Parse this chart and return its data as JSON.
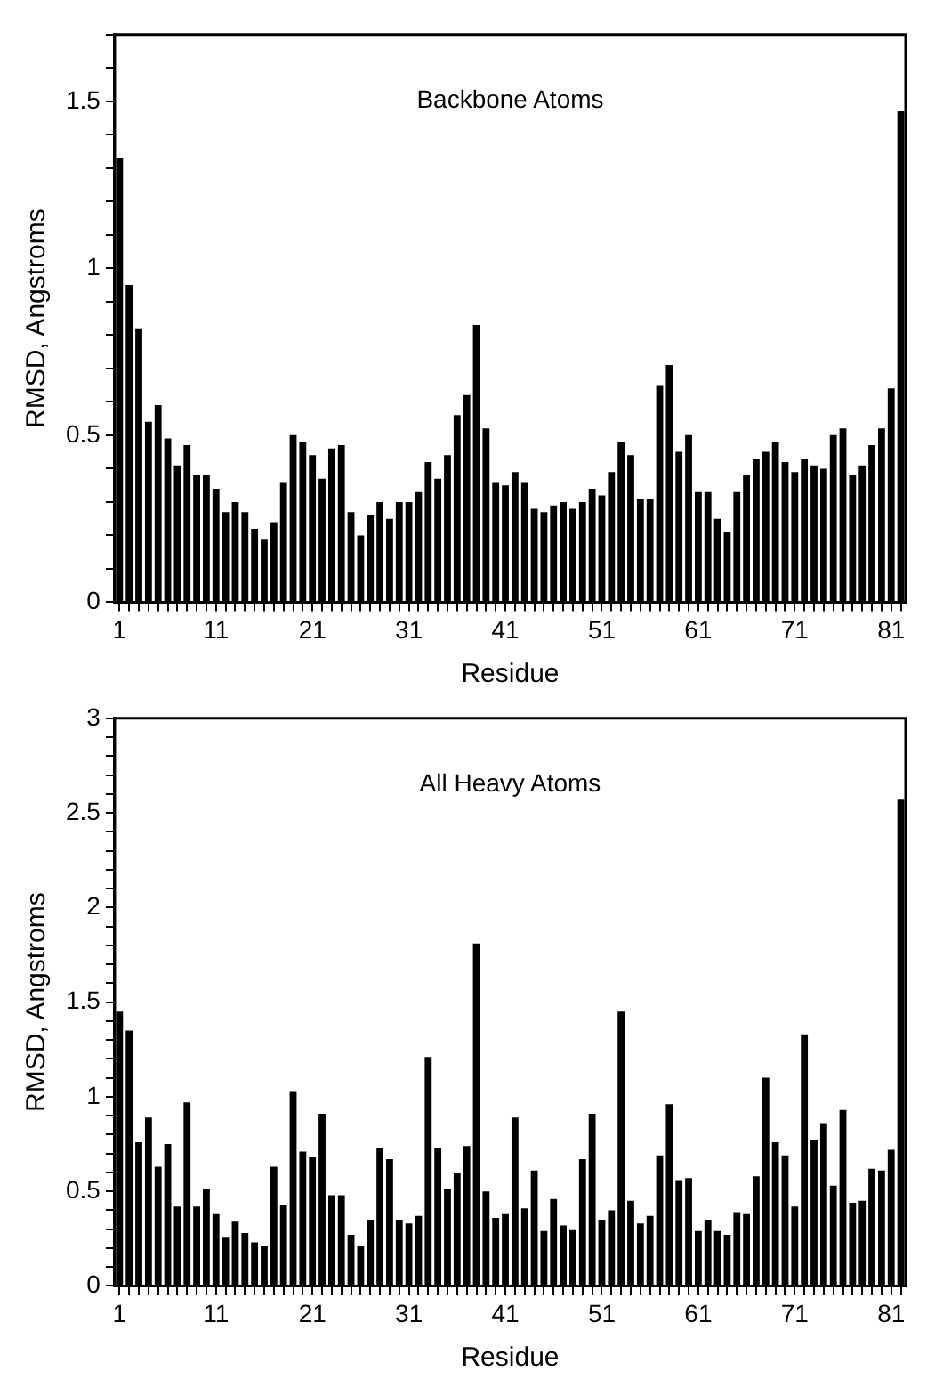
{
  "chart_data": [
    {
      "type": "bar",
      "title": "Backbone Atoms",
      "xlabel": "Residue",
      "ylabel": "RMSD, Angstroms",
      "color": "#000000",
      "categories": [
        "1",
        null,
        null,
        null,
        null,
        null,
        null,
        null,
        null,
        null,
        "11",
        null,
        null,
        null,
        null,
        null,
        null,
        null,
        null,
        null,
        "21",
        null,
        null,
        null,
        null,
        null,
        null,
        null,
        null,
        null,
        "31",
        null,
        null,
        null,
        null,
        null,
        null,
        null,
        null,
        null,
        "41",
        null,
        null,
        null,
        null,
        null,
        null,
        null,
        null,
        null,
        "51",
        null,
        null,
        null,
        null,
        null,
        null,
        null,
        null,
        null,
        "61",
        null,
        null,
        null,
        null,
        null,
        null,
        null,
        null,
        null,
        "71",
        null,
        null,
        null,
        null,
        null,
        null,
        null,
        null,
        null,
        "81",
        null
      ],
      "values": [
        1.33,
        0.95,
        0.82,
        0.54,
        0.59,
        0.49,
        0.41,
        0.47,
        0.38,
        0.38,
        0.34,
        0.27,
        0.3,
        0.27,
        0.22,
        0.19,
        0.24,
        0.36,
        0.5,
        0.48,
        0.44,
        0.37,
        0.46,
        0.47,
        0.27,
        0.2,
        0.26,
        0.3,
        0.25,
        0.3,
        0.3,
        0.33,
        0.42,
        0.37,
        0.44,
        0.56,
        0.62,
        0.83,
        0.52,
        0.36,
        0.35,
        0.39,
        0.36,
        0.28,
        0.27,
        0.29,
        0.3,
        0.28,
        0.3,
        0.34,
        0.32,
        0.39,
        0.48,
        0.44,
        0.31,
        0.31,
        0.65,
        0.71,
        0.45,
        0.5,
        0.33,
        0.33,
        0.25,
        0.21,
        0.33,
        0.38,
        0.43,
        0.45,
        0.48,
        0.42,
        0.39,
        0.43,
        0.41,
        0.4,
        0.5,
        0.52,
        0.38,
        0.41,
        0.47,
        0.52,
        0.64,
        1.47
      ],
      "ylim": [
        0,
        1.7
      ],
      "yticks": [
        0,
        {
          "value": 0.1,
          "label": null
        },
        {
          "value": 0.2,
          "label": null
        },
        {
          "value": 0.3,
          "label": null
        },
        {
          "value": 0.4,
          "label": null
        },
        0.5,
        {
          "value": 0.6,
          "label": null
        },
        {
          "value": 0.7,
          "label": null
        },
        {
          "value": 0.8,
          "label": null
        },
        {
          "value": 0.9,
          "label": null
        },
        1,
        {
          "value": 1.1,
          "label": null
        },
        {
          "value": 1.2,
          "label": null
        },
        {
          "value": 1.3,
          "label": null
        },
        {
          "value": 1.4,
          "label": null
        },
        1.5,
        {
          "value": 1.6,
          "label": null
        },
        {
          "value": 1.7,
          "label": null
        }
      ]
    },
    {
      "type": "bar",
      "title": "All Heavy Atoms",
      "xlabel": "Residue",
      "ylabel": "RMSD, Angstroms",
      "color": "#000000",
      "categories": [
        "1",
        null,
        null,
        null,
        null,
        null,
        null,
        null,
        null,
        null,
        "11",
        null,
        null,
        null,
        null,
        null,
        null,
        null,
        null,
        null,
        "21",
        null,
        null,
        null,
        null,
        null,
        null,
        null,
        null,
        null,
        "31",
        null,
        null,
        null,
        null,
        null,
        null,
        null,
        null,
        null,
        "41",
        null,
        null,
        null,
        null,
        null,
        null,
        null,
        null,
        null,
        "51",
        null,
        null,
        null,
        null,
        null,
        null,
        null,
        null,
        null,
        "61",
        null,
        null,
        null,
        null,
        null,
        null,
        null,
        null,
        null,
        "71",
        null,
        null,
        null,
        null,
        null,
        null,
        null,
        null,
        null,
        "81",
        null
      ],
      "values": [
        1.45,
        1.35,
        0.76,
        0.89,
        0.63,
        0.75,
        0.42,
        0.97,
        0.42,
        0.51,
        0.38,
        0.26,
        0.34,
        0.28,
        0.23,
        0.21,
        0.63,
        0.43,
        1.03,
        0.71,
        0.68,
        0.91,
        0.48,
        0.48,
        0.27,
        0.21,
        0.35,
        0.73,
        0.67,
        0.35,
        0.33,
        0.37,
        1.21,
        0.73,
        0.51,
        0.6,
        0.74,
        1.81,
        0.5,
        0.36,
        0.38,
        0.89,
        0.41,
        0.61,
        0.29,
        0.46,
        0.32,
        0.3,
        0.67,
        0.91,
        0.35,
        0.4,
        1.45,
        0.45,
        0.33,
        0.37,
        0.69,
        0.96,
        0.56,
        0.57,
        0.29,
        0.35,
        0.29,
        0.27,
        0.39,
        0.38,
        0.58,
        1.1,
        0.76,
        0.69,
        0.42,
        1.33,
        0.77,
        0.86,
        0.53,
        0.93,
        0.44,
        0.45,
        0.62,
        0.61,
        0.72,
        2.57
      ],
      "ylim": [
        0,
        3
      ],
      "yticks": [
        0,
        {
          "value": 0.1,
          "label": null
        },
        {
          "value": 0.2,
          "label": null
        },
        {
          "value": 0.3,
          "label": null
        },
        {
          "value": 0.4,
          "label": null
        },
        0.5,
        {
          "value": 0.6,
          "label": null
        },
        {
          "value": 0.7,
          "label": null
        },
        {
          "value": 0.8,
          "label": null
        },
        {
          "value": 0.9,
          "label": null
        },
        1,
        {
          "value": 1.1,
          "label": null
        },
        {
          "value": 1.2,
          "label": null
        },
        {
          "value": 1.3,
          "label": null
        },
        {
          "value": 1.4,
          "label": null
        },
        1.5,
        {
          "value": 1.6,
          "label": null
        },
        {
          "value": 1.7,
          "label": null
        },
        {
          "value": 1.8,
          "label": null
        },
        {
          "value": 1.9,
          "label": null
        },
        2,
        {
          "value": 2.1,
          "label": null
        },
        {
          "value": 2.2,
          "label": null
        },
        {
          "value": 2.3,
          "label": null
        },
        {
          "value": 2.4,
          "label": null
        },
        2.5,
        {
          "value": 2.6,
          "label": null
        },
        {
          "value": 2.7,
          "label": null
        },
        {
          "value": 2.8,
          "label": null
        },
        {
          "value": 2.9,
          "label": null
        },
        3
      ]
    }
  ]
}
